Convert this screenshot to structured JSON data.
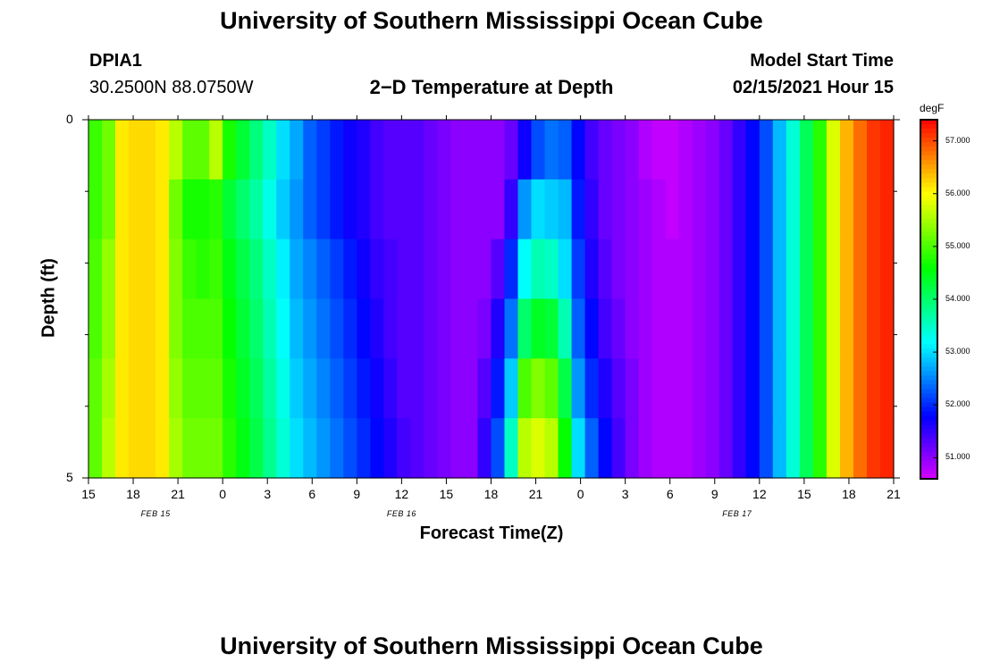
{
  "page": {
    "title_top": "University of Southern Mississippi Ocean Cube",
    "title_bottom": "University of Southern Mississippi Ocean Cube",
    "station_id": "DPIA1",
    "station_coords": "30.2500N 88.0750W",
    "plot_title": "2−D Temperature at Depth",
    "model_start_label": "Model Start Time",
    "model_start_value": "02/15/2021 Hour 15"
  },
  "chart_data": {
    "type": "heatmap",
    "title": "2−D Temperature at Depth",
    "xlabel": "Forecast Time(Z)",
    "ylabel": "Depth (ft)",
    "x_start_hour": 15,
    "x_hours": 54,
    "x_tick_labels": [
      "15",
      "18",
      "21",
      "0",
      "3",
      "6",
      "9",
      "12",
      "15",
      "18",
      "21",
      "0",
      "3",
      "6",
      "9",
      "12",
      "15",
      "18",
      "21"
    ],
    "date_labels": [
      {
        "text": "FEB 15",
        "hour": 19.5
      },
      {
        "text": "FEB 16",
        "hour": 36
      },
      {
        "text": "FEB 17",
        "hour": 58.5
      }
    ],
    "y_ticks": [
      "0",
      "5"
    ],
    "ylim": [
      0,
      5
    ],
    "colorbar": {
      "unit": "degF",
      "min": 50.6,
      "max": 57.4,
      "tick_values": [
        51.0,
        52.0,
        53.0,
        54.0,
        55.0,
        56.0,
        57.0
      ],
      "tick_labels": [
        "51.000",
        "52.000",
        "53.000",
        "54.000",
        "55.000",
        "56.000",
        "57.000"
      ]
    },
    "depth_rows": [
      {
        "depth_ft": 0.5,
        "temps_degF": [
          54.9,
          55.2,
          56.1,
          56.2,
          56.2,
          56.1,
          55.6,
          55.1,
          55.1,
          55.6,
          54.7,
          54.3,
          53.9,
          53.5,
          53.0,
          52.7,
          52.3,
          52.1,
          51.9,
          51.7,
          51.6,
          51.4,
          51.3,
          51.3,
          51.3,
          51.2,
          51.1,
          51.0,
          51.0,
          51.0,
          51.0,
          51.2,
          51.7,
          52.2,
          52.4,
          52.3,
          51.8,
          51.4,
          51.2,
          51.1,
          51.0,
          50.8,
          50.7,
          50.7,
          50.8,
          50.9,
          51.0,
          51.2,
          51.5,
          51.8,
          52.2,
          52.8,
          53.4,
          54.1,
          54.8,
          55.8,
          56.4,
          56.8,
          57.1,
          57.2
        ]
      },
      {
        "depth_ft": 1.5,
        "temps_degF": [
          54.9,
          55.2,
          56.1,
          56.2,
          56.2,
          56.1,
          55.2,
          54.7,
          54.7,
          54.8,
          54.3,
          54.0,
          53.7,
          53.3,
          52.9,
          52.6,
          52.3,
          52.1,
          51.9,
          51.7,
          51.6,
          51.4,
          51.3,
          51.3,
          51.3,
          51.2,
          51.1,
          51.0,
          51.0,
          51.0,
          51.0,
          51.5,
          52.6,
          53.0,
          52.9,
          52.8,
          51.9,
          51.5,
          51.2,
          51.1,
          51.0,
          50.9,
          50.8,
          50.7,
          50.8,
          50.9,
          51.0,
          51.2,
          51.5,
          51.8,
          52.2,
          52.8,
          53.4,
          54.1,
          54.8,
          55.8,
          56.4,
          56.8,
          57.1,
          57.2
        ]
      },
      {
        "depth_ft": 2.5,
        "temps_degF": [
          55.0,
          55.4,
          56.1,
          56.2,
          56.2,
          56.1,
          55.3,
          54.9,
          54.8,
          54.9,
          54.5,
          54.2,
          53.9,
          53.5,
          53.1,
          52.7,
          52.5,
          52.3,
          52.1,
          51.9,
          51.7,
          51.5,
          51.4,
          51.3,
          51.3,
          51.2,
          51.1,
          51.0,
          51.0,
          51.0,
          51.3,
          52.0,
          53.2,
          53.6,
          53.5,
          53.0,
          52.1,
          51.6,
          51.3,
          51.1,
          51.0,
          50.9,
          50.8,
          50.8,
          50.8,
          50.9,
          51.0,
          51.2,
          51.5,
          51.8,
          52.2,
          52.8,
          53.4,
          54.1,
          54.8,
          55.8,
          56.4,
          56.8,
          57.1,
          57.2
        ]
      },
      {
        "depth_ft": 3.5,
        "temps_degF": [
          55.0,
          55.4,
          56.1,
          56.2,
          56.2,
          56.1,
          55.3,
          55.0,
          55.0,
          55.0,
          54.6,
          54.3,
          54.0,
          53.6,
          53.2,
          52.8,
          52.6,
          52.4,
          52.2,
          52.0,
          51.8,
          51.6,
          51.4,
          51.3,
          51.3,
          51.2,
          51.1,
          51.0,
          51.0,
          51.1,
          51.6,
          52.4,
          54.0,
          54.4,
          54.3,
          53.6,
          52.3,
          51.8,
          51.4,
          51.2,
          51.0,
          50.9,
          50.8,
          50.8,
          50.8,
          50.9,
          51.0,
          51.2,
          51.5,
          51.8,
          52.2,
          52.8,
          53.4,
          54.1,
          54.8,
          55.8,
          56.4,
          56.8,
          57.1,
          57.2
        ]
      },
      {
        "depth_ft": 4.5,
        "temps_degF": [
          55.1,
          55.5,
          56.1,
          56.2,
          56.2,
          56.1,
          55.4,
          55.1,
          55.1,
          55.1,
          54.7,
          54.4,
          54.1,
          53.7,
          53.3,
          52.9,
          52.7,
          52.5,
          52.3,
          52.1,
          51.9,
          51.7,
          51.5,
          51.3,
          51.3,
          51.2,
          51.1,
          51.0,
          51.0,
          51.3,
          51.9,
          52.9,
          55.0,
          55.3,
          55.1,
          54.2,
          52.6,
          52.0,
          51.6,
          51.3,
          51.1,
          50.9,
          50.8,
          50.8,
          50.8,
          50.9,
          51.0,
          51.2,
          51.5,
          51.8,
          52.2,
          52.8,
          53.4,
          54.1,
          54.8,
          55.8,
          56.4,
          56.8,
          57.1,
          57.2
        ]
      },
      {
        "depth_ft": 5.0,
        "temps_degF": [
          55.1,
          55.6,
          56.1,
          56.2,
          56.2,
          56.1,
          55.5,
          55.2,
          55.2,
          55.2,
          54.8,
          54.5,
          54.2,
          53.8,
          53.4,
          53.0,
          52.8,
          52.6,
          52.4,
          52.2,
          52.0,
          51.8,
          51.6,
          51.4,
          51.3,
          51.2,
          51.1,
          51.0,
          51.0,
          51.5,
          52.2,
          53.5,
          55.6,
          55.8,
          55.6,
          54.6,
          53.0,
          52.3,
          51.8,
          51.4,
          51.1,
          50.9,
          50.8,
          50.8,
          50.8,
          50.9,
          51.0,
          51.2,
          51.5,
          51.8,
          52.2,
          52.8,
          53.4,
          54.1,
          54.8,
          55.8,
          56.4,
          56.8,
          57.1,
          57.2
        ]
      }
    ]
  }
}
